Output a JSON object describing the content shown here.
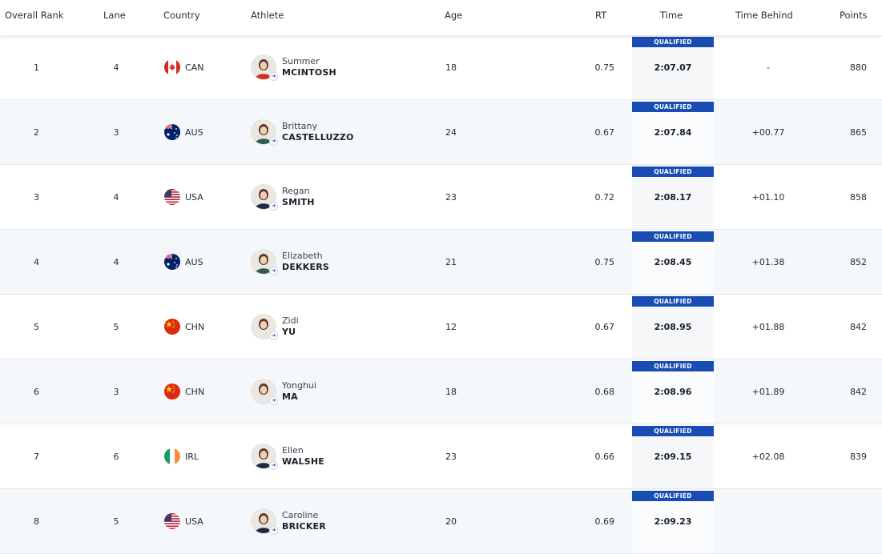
{
  "header": {
    "overall_rank": "Overall Rank",
    "lane": "Lane",
    "country": "Country",
    "athlete": "Athlete",
    "age": "Age",
    "rt": "RT",
    "time": "Time",
    "time_behind": "Time Behind",
    "points": "Points"
  },
  "qualified_label": "QUALIFIED",
  "rows": [
    {
      "rank": "1",
      "lane": "4",
      "country": "CAN",
      "flag": "canada-flag-icon",
      "first_name": "Summer",
      "last_name": "MCINTOSH",
      "age": "18",
      "rt": "0.75",
      "time": "2:07.07",
      "behind": "-",
      "points": "880"
    },
    {
      "rank": "2",
      "lane": "3",
      "country": "AUS",
      "flag": "australia-flag-icon",
      "first_name": "Brittany",
      "last_name": "CASTELLUZZO",
      "age": "24",
      "rt": "0.67",
      "time": "2:07.84",
      "behind": "+00.77",
      "points": "865"
    },
    {
      "rank": "3",
      "lane": "4",
      "country": "USA",
      "flag": "usa-flag-icon",
      "first_name": "Regan",
      "last_name": "SMITH",
      "age": "23",
      "rt": "0.72",
      "time": "2:08.17",
      "behind": "+01.10",
      "points": "858"
    },
    {
      "rank": "4",
      "lane": "4",
      "country": "AUS",
      "flag": "australia-flag-icon",
      "first_name": "Elizabeth",
      "last_name": "DEKKERS",
      "age": "21",
      "rt": "0.75",
      "time": "2:08.45",
      "behind": "+01.38",
      "points": "852"
    },
    {
      "rank": "5",
      "lane": "5",
      "country": "CHN",
      "flag": "china-flag-icon",
      "first_name": "Zidi",
      "last_name": "YU",
      "age": "12",
      "rt": "0.67",
      "time": "2:08.95",
      "behind": "+01.88",
      "points": "842"
    },
    {
      "rank": "6",
      "lane": "3",
      "country": "CHN",
      "flag": "china-flag-icon",
      "first_name": "Yonghui",
      "last_name": "MA",
      "age": "18",
      "rt": "0.68",
      "time": "2:08.96",
      "behind": "+01.89",
      "points": "842"
    },
    {
      "rank": "7",
      "lane": "6",
      "country": "IRL",
      "flag": "ireland-flag-icon",
      "first_name": "Ellen",
      "last_name": "WALSHE",
      "age": "23",
      "rt": "0.66",
      "time": "2:09.15",
      "behind": "+02.08",
      "points": "839"
    },
    {
      "rank": "8",
      "lane": "5",
      "country": "USA",
      "flag": "usa-flag-icon",
      "first_name": "Caroline",
      "last_name": "BRICKER",
      "age": "20",
      "rt": "0.69",
      "time": "2:09.23",
      "behind": "",
      "points": ""
    }
  ],
  "colors": {
    "qualified_badge": "#1a4db3",
    "alt_row": "#f5f8fb",
    "text": "#262b36"
  }
}
